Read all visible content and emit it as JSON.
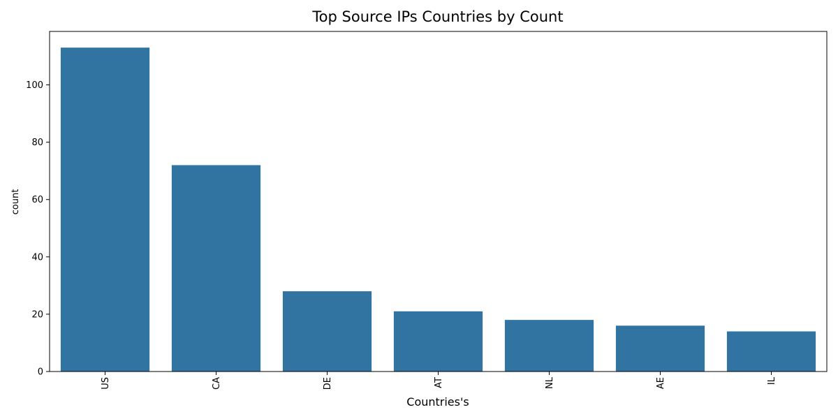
{
  "chart_data": {
    "type": "bar",
    "title": "Top Source IPs Countries by Count",
    "xlabel": "Countries's",
    "ylabel": "count",
    "categories": [
      "US",
      "CA",
      "DE",
      "AT",
      "NL",
      "AE",
      "IL"
    ],
    "values": [
      113,
      72,
      28,
      21,
      18,
      16,
      14
    ],
    "ylim": [
      0,
      118.65
    ],
    "yticks": [
      0,
      20,
      40,
      60,
      80,
      100
    ],
    "xtick_rotation": 90,
    "grid": false,
    "legend": "none",
    "colors": {
      "bar": "#3274a1"
    }
  }
}
